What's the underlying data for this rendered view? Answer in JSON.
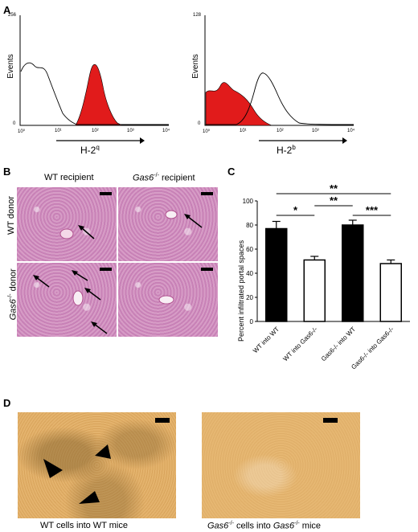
{
  "panels": {
    "A": "A",
    "B": "B",
    "C": "C",
    "D": "D"
  },
  "panelA": {
    "left": {
      "y_max_label": "256",
      "y_zero_label": "0",
      "ylabel": "Events",
      "x_ticks": [
        "10⁰",
        "10¹",
        "10²",
        "10³",
        "10⁴"
      ],
      "marker_base": "H-2",
      "marker_sup": "q"
    },
    "right": {
      "y_max_label": "128",
      "y_zero_label": "0",
      "ylabel": "Events",
      "x_ticks": [
        "10⁰",
        "10¹",
        "10²",
        "10³",
        "10⁴"
      ],
      "marker_base": "H-2",
      "marker_sup": "b"
    }
  },
  "panelB": {
    "col_wt": "WT recipient",
    "col_gas6": "Gas6",
    "col_gas6_sup": "-/-",
    "col_gas6_suffix": " recipient",
    "row_wt": "WT donor",
    "row_gas6": "Gas6",
    "row_gas6_sup": "-/-",
    "row_gas6_suffix": " donor"
  },
  "chart_data": {
    "type": "bar",
    "categories": [
      "WT into WT",
      "WT into Gas6-/-",
      "Gas6-/- into WT",
      "Gas6-/- into Gas6-/-"
    ],
    "values": [
      77,
      51,
      80,
      48
    ],
    "errors": [
      6,
      3,
      4,
      3
    ],
    "fills": [
      "#000000",
      "#ffffff",
      "#000000",
      "#ffffff"
    ],
    "ylabel": "Percent infiltrated portal spaces",
    "ylim": [
      0,
      100
    ],
    "yticks": [
      "0",
      "20",
      "40",
      "60",
      "80",
      "100"
    ],
    "significance": [
      {
        "from": 0,
        "to": 1,
        "label": "*"
      },
      {
        "from": 1,
        "to": 2,
        "label": "**"
      },
      {
        "from": 2,
        "to": 3,
        "label": "***"
      },
      {
        "from": 0,
        "to": 3,
        "label": "**"
      }
    ]
  },
  "panelD": {
    "left_caption": "WT cells into WT mice",
    "right_caption_a": "Gas6",
    "right_caption_sup_a": "-/-",
    "right_caption_b": " cells into ",
    "right_caption_c": "Gas6",
    "right_caption_sup_c": "-/-",
    "right_caption_d": " mice"
  }
}
